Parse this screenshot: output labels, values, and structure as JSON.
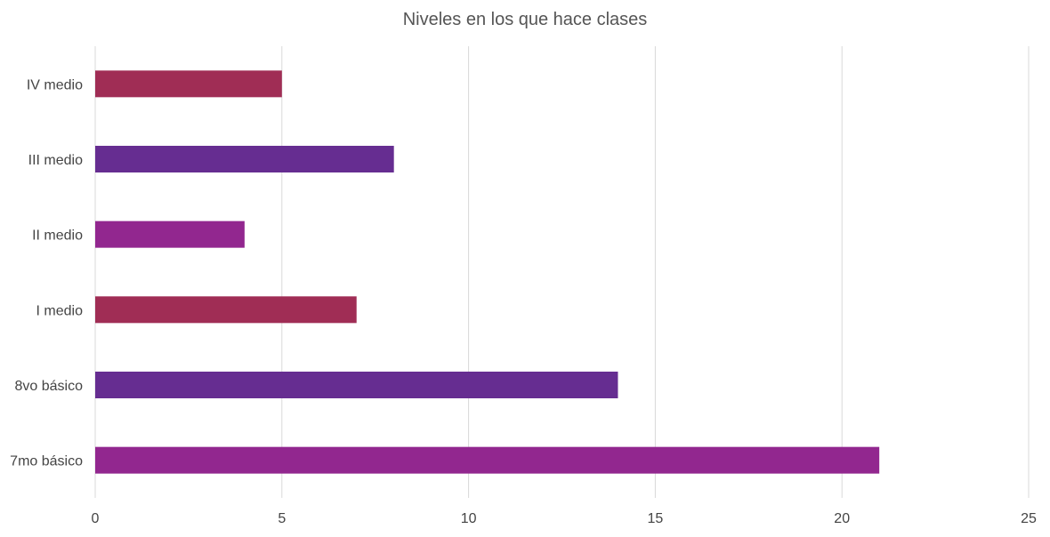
{
  "chart_data": {
    "type": "bar",
    "orientation": "horizontal",
    "title": "Niveles en los que hace clases",
    "xlabel": "",
    "ylabel": "",
    "categories": [
      "IV medio",
      "III medio",
      "II medio",
      "I medio",
      "8vo básico",
      "7mo básico"
    ],
    "values": [
      5,
      8,
      4,
      7,
      14,
      21
    ],
    "bar_colors": [
      "#a02d55",
      "#662d91",
      "#92278f",
      "#a02d55",
      "#662d91",
      "#92278f"
    ],
    "xlim": [
      0,
      25
    ],
    "x_ticks": [
      "0",
      "5",
      "10",
      "15",
      "20",
      "25"
    ],
    "grid": true,
    "legend": "none"
  }
}
